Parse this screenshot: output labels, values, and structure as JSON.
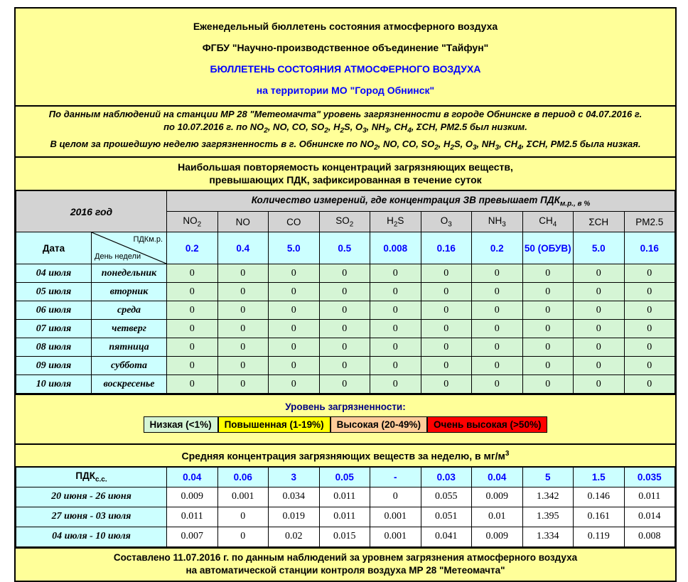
{
  "header": {
    "lines": [
      {
        "text": "Еженедельный бюллетень состояния атмосферного воздуха",
        "color": "#000000"
      },
      {
        "text": "ФГБУ \"Научно-производственное объединение \"Тайфун\"",
        "color": "#000000"
      },
      {
        "text": "БЮЛЛЕТЕНЬ СОСТОЯНИЯ АТМОСФЕРНОГО ВОЗДУХА",
        "color": "#0000FF"
      },
      {
        "text": "на территории МО \"Город Обнинск\"",
        "color": "#0000FF"
      }
    ]
  },
  "summary": {
    "lines": [
      "По данным наблюдений на станции МР 28 \"Метеомачта\" уровень загрязненности в городе Обнинске в период с 04.07.2016 г.",
      "по 10.07.2016 г. по NO_{2}, NO, CO, SO_{2}, H_{2}S, O_{3}, NH_{3}, CH_{4}, ΣCH, PM2.5 был низким.",
      "В целом за прошедшую неделю загрязненность в г. Обнинске по NO_{2}, NO, CO, SO_{2}, H_{2}S, O_{3}, NH_{3}, CH_{4}, ΣCH, PM2.5 была низкая."
    ]
  },
  "section1_title": {
    "line1": "Наибольшая повторяемость концентраций загрязняющих веществ,",
    "line2": "превышающих ПДК, зафиксированная в течение суток"
  },
  "upper_table": {
    "year_label": "2016 год",
    "measure_header": "Количество измерений, где концентрация ЗВ превышает ПДК_{м.р., в %}",
    "chemicals": [
      "NO_{2}",
      "NO",
      "CO",
      "SO_{2}",
      "H_{2}S",
      "O_{3}",
      "NH_{3}",
      "CH_{4}",
      "ΣCH",
      "PM2.5"
    ],
    "date_label": "Дата",
    "diag_top_label": "ПДКм.р.",
    "diag_bottom_label": "День недели",
    "pdk_mr_values": [
      "0.2",
      "0.4",
      "5.0",
      "0.5",
      "0.008",
      "0.16",
      "0.2",
      "50 (ОБУВ)",
      "5.0",
      "0.16"
    ],
    "rows": [
      {
        "date": "04 июля",
        "day": "понедельник",
        "values": [
          "0",
          "0",
          "0",
          "0",
          "0",
          "0",
          "0",
          "0",
          "0",
          "0"
        ]
      },
      {
        "date": "05 июля",
        "day": "вторник",
        "values": [
          "0",
          "0",
          "0",
          "0",
          "0",
          "0",
          "0",
          "0",
          "0",
          "0"
        ]
      },
      {
        "date": "06 июля",
        "day": "среда",
        "values": [
          "0",
          "0",
          "0",
          "0",
          "0",
          "0",
          "0",
          "0",
          "0",
          "0"
        ]
      },
      {
        "date": "07 июля",
        "day": "четверг",
        "values": [
          "0",
          "0",
          "0",
          "0",
          "0",
          "0",
          "0",
          "0",
          "0",
          "0"
        ]
      },
      {
        "date": "08 июля",
        "day": "пятница",
        "values": [
          "0",
          "0",
          "0",
          "0",
          "0",
          "0",
          "0",
          "0",
          "0",
          "0"
        ]
      },
      {
        "date": "09 июля",
        "day": "суббота",
        "values": [
          "0",
          "0",
          "0",
          "0",
          "0",
          "0",
          "0",
          "0",
          "0",
          "0"
        ]
      },
      {
        "date": "10 июля",
        "day": "воскресенье",
        "values": [
          "0",
          "0",
          "0",
          "0",
          "0",
          "0",
          "0",
          "0",
          "0",
          "0"
        ]
      }
    ]
  },
  "legend": {
    "title": "Уровень загрязненности:",
    "items": [
      {
        "label": "Низкая (<1%)",
        "color": "#D5F5D5"
      },
      {
        "label": "Повышенная (1-19%)",
        "color": "#FFFF00"
      },
      {
        "label": "Высокая (20-49%)",
        "color": "#FFCC99"
      },
      {
        "label": "Очень высокая (>50%)",
        "color": "#FF0000"
      }
    ]
  },
  "section2_title": "Средняя концентрация загрязняющих веществ за неделю, в мг/м^{3}",
  "weekly_table": {
    "pdk_ss_label": "ПДК_{с.с.}",
    "pdk_ss_values": [
      "0.04",
      "0.06",
      "3",
      "0.05",
      "-",
      "0.03",
      "0.04",
      "5",
      "1.5",
      "0.035"
    ],
    "rows": [
      {
        "period": "20 июня - 26 июня",
        "values": [
          "0.009",
          "0.001",
          "0.034",
          "0.011",
          "0",
          "0.055",
          "0.009",
          "1.342",
          "0.146",
          "0.011"
        ]
      },
      {
        "period": "27 июня - 03 июля",
        "values": [
          "0.011",
          "0",
          "0.019",
          "0.011",
          "0.001",
          "0.051",
          "0.01",
          "1.395",
          "0.161",
          "0.014"
        ]
      },
      {
        "period": "04 июля - 10 июля",
        "values": [
          "0.007",
          "0",
          "0.02",
          "0.015",
          "0.001",
          "0.041",
          "0.009",
          "1.334",
          "0.119",
          "0.008"
        ]
      }
    ]
  },
  "footer": {
    "line1": "Составлено 11.07.2016 г. по данным наблюдений за уровнем загрязнения атмосферного воздуха",
    "line2": "на автоматической станции контроля воздуха МР 28 \"Метеомачта\""
  },
  "colors": {
    "page_yellow": "#FFFF99",
    "header_gray": "#D3D3D3",
    "cell_cyan": "#CCFFFF",
    "cell_green": "#D5F5D5",
    "value_blue": "#0000FF",
    "legend_title_navy": "#000080",
    "legend_yellow": "#FFFF00",
    "legend_peach": "#FFCC99",
    "legend_red": "#FF0000"
  }
}
